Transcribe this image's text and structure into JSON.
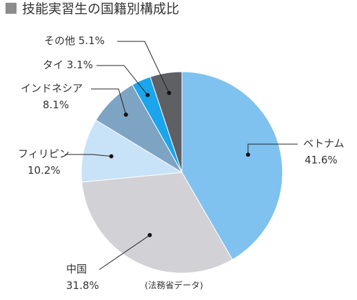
{
  "chart_data": {
    "type": "pie",
    "title": "技能実習生の国籍別構成比",
    "source": "(法務省データ)",
    "slices": [
      {
        "name": "ベトナム",
        "value": 41.6,
        "value_label": "41.6%",
        "color": "#7fc1ef"
      },
      {
        "name": "中国",
        "value": 31.8,
        "value_label": "31.8%",
        "color": "#d2d2d6"
      },
      {
        "name": "フィリピン",
        "value": 10.2,
        "value_label": "10.2%",
        "color": "#c8e2f7"
      },
      {
        "name": "インドネシア",
        "value": 8.1,
        "value_label": "8.1%",
        "color": "#7ea4c4"
      },
      {
        "name": "タイ",
        "value": 3.1,
        "value_label": "3.1%",
        "color": "#1aa5ec"
      },
      {
        "name": "その他",
        "value": 5.1,
        "value_label": "5.1%",
        "color": "#5f6064"
      }
    ],
    "legend": "none",
    "title_marker_color": "#8c8c8c"
  }
}
